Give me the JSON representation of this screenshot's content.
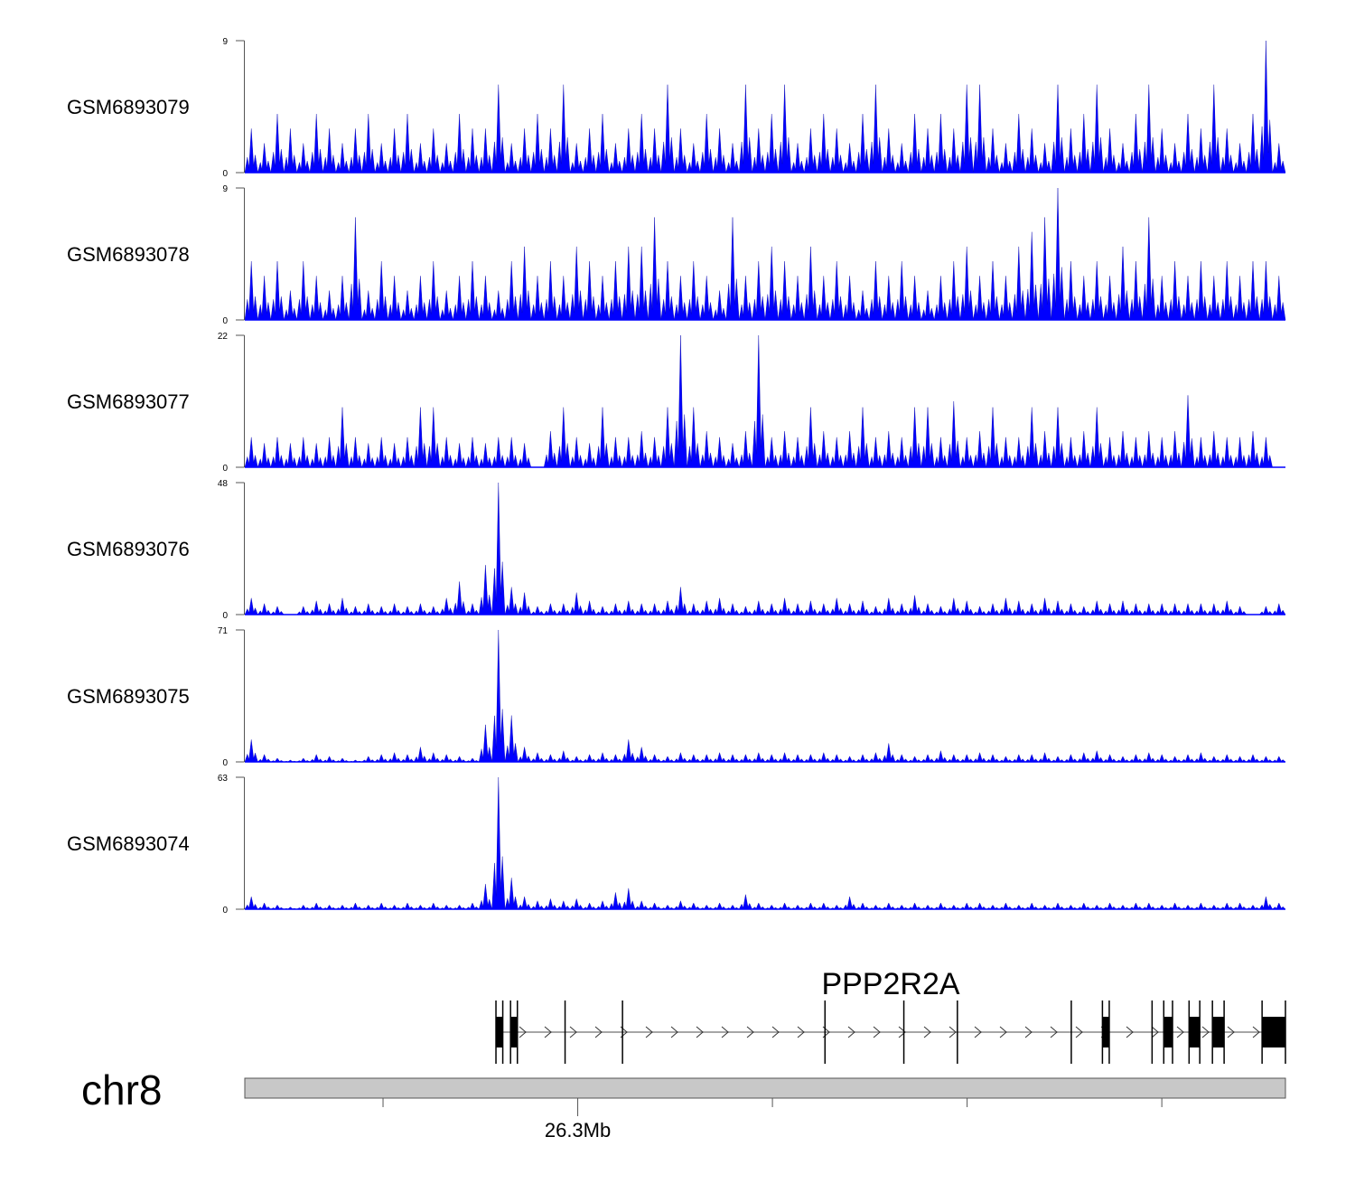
{
  "chart_data": {
    "type": "area",
    "title": "",
    "chromosome": "chr8",
    "xlim_mb": [
      26.2658,
      26.3727
    ],
    "x_ticks_mb": [
      26.28,
      26.3,
      26.32,
      26.34,
      26.36
    ],
    "x_tick_labels": [
      "",
      "26.3Mb",
      "",
      "",
      ""
    ],
    "bins": 80,
    "tracks": [
      {
        "name": "GSM6893079",
        "ylim": [
          0,
          9
        ],
        "y_tick_labels": [
          "9",
          "0"
        ],
        "values": [
          3,
          2,
          4,
          3,
          2,
          4,
          3,
          2,
          3,
          4,
          2,
          3,
          4,
          2,
          3,
          2,
          4,
          3,
          3,
          6,
          2,
          3,
          4,
          3,
          6,
          2,
          3,
          4,
          2,
          3,
          4,
          3,
          6,
          3,
          2,
          4,
          3,
          2,
          6,
          3,
          4,
          6,
          2,
          3,
          4,
          3,
          2,
          4,
          6,
          3,
          2,
          4,
          3,
          4,
          3,
          6,
          6,
          3,
          2,
          4,
          3,
          2,
          6,
          3,
          4,
          6,
          3,
          2,
          4,
          6,
          3,
          2,
          4,
          3,
          6,
          3,
          2,
          4,
          9,
          2
        ]
      },
      {
        "name": "GSM6893078",
        "ylim": [
          0,
          9
        ],
        "y_tick_labels": [
          "9",
          "0"
        ],
        "values": [
          4,
          3,
          4,
          2,
          4,
          3,
          2,
          3,
          7,
          2,
          4,
          3,
          2,
          3,
          4,
          2,
          3,
          4,
          3,
          2,
          4,
          5,
          3,
          4,
          3,
          5,
          4,
          3,
          4,
          5,
          5,
          7,
          4,
          3,
          4,
          3,
          2,
          7,
          3,
          4,
          5,
          4,
          3,
          5,
          3,
          4,
          3,
          2,
          4,
          3,
          4,
          3,
          2,
          3,
          4,
          5,
          3,
          4,
          3,
          5,
          6,
          7,
          9,
          4,
          3,
          4,
          3,
          5,
          4,
          7,
          3,
          4,
          3,
          4,
          3,
          4,
          3,
          4,
          4,
          3
        ]
      },
      {
        "name": "GSM6893077",
        "ylim": [
          0,
          22
        ],
        "y_tick_labels": [
          "22",
          "0"
        ],
        "values": [
          5,
          4,
          5,
          4,
          5,
          4,
          5,
          10,
          5,
          4,
          5,
          4,
          5,
          10,
          10,
          5,
          4,
          5,
          4,
          5,
          5,
          4,
          0,
          6,
          10,
          5,
          4,
          10,
          5,
          5,
          6,
          5,
          10,
          22,
          10,
          6,
          5,
          4,
          6,
          22,
          5,
          6,
          5,
          10,
          6,
          5,
          6,
          10,
          5,
          6,
          5,
          10,
          10,
          5,
          11,
          5,
          6,
          10,
          5,
          5,
          10,
          6,
          10,
          5,
          6,
          10,
          5,
          6,
          5,
          6,
          5,
          6,
          12,
          5,
          6,
          5,
          5,
          6,
          5,
          0
        ]
      },
      {
        "name": "GSM6893076",
        "ylim": [
          0,
          48
        ],
        "y_tick_labels": [
          "48",
          "0"
        ],
        "values": [
          6,
          4,
          3,
          0,
          3,
          5,
          4,
          6,
          3,
          4,
          3,
          4,
          3,
          4,
          3,
          6,
          12,
          4,
          18,
          48,
          10,
          8,
          3,
          4,
          4,
          8,
          5,
          3,
          4,
          5,
          4,
          4,
          5,
          10,
          4,
          5,
          6,
          4,
          3,
          5,
          4,
          6,
          4,
          5,
          4,
          6,
          4,
          5,
          3,
          6,
          4,
          7,
          4,
          3,
          6,
          5,
          3,
          4,
          6,
          5,
          4,
          6,
          5,
          4,
          3,
          5,
          4,
          5,
          4,
          4,
          4,
          4,
          4,
          4,
          4,
          5,
          3,
          0,
          3,
          4
        ]
      },
      {
        "name": "GSM6893075",
        "ylim": [
          0,
          71
        ],
        "y_tick_labels": [
          "71",
          "0"
        ],
        "values": [
          12,
          4,
          2,
          1,
          2,
          4,
          3,
          2,
          1,
          3,
          4,
          5,
          4,
          8,
          5,
          4,
          3,
          2,
          20,
          71,
          25,
          8,
          5,
          4,
          6,
          3,
          4,
          5,
          4,
          12,
          8,
          4,
          3,
          5,
          4,
          4,
          5,
          4,
          4,
          5,
          4,
          5,
          4,
          4,
          5,
          4,
          3,
          4,
          5,
          10,
          4,
          3,
          4,
          6,
          4,
          4,
          5,
          4,
          3,
          4,
          4,
          5,
          3,
          4,
          5,
          6,
          4,
          3,
          4,
          5,
          4,
          3,
          4,
          5,
          3,
          4,
          3,
          4,
          3,
          3
        ]
      },
      {
        "name": "GSM6893074",
        "ylim": [
          0,
          63
        ],
        "y_tick_labels": [
          "63",
          "0"
        ],
        "values": [
          6,
          3,
          2,
          1,
          2,
          3,
          2,
          2,
          3,
          2,
          3,
          2,
          3,
          2,
          3,
          2,
          2,
          3,
          12,
          63,
          15,
          6,
          4,
          5,
          4,
          5,
          3,
          4,
          8,
          10,
          4,
          3,
          2,
          4,
          3,
          2,
          3,
          2,
          7,
          3,
          2,
          3,
          2,
          3,
          3,
          2,
          6,
          3,
          2,
          3,
          2,
          3,
          2,
          3,
          2,
          3,
          3,
          2,
          3,
          2,
          3,
          2,
          3,
          2,
          3,
          2,
          3,
          2,
          3,
          3,
          2,
          3,
          2,
          3,
          2,
          3,
          3,
          2,
          6,
          3
        ]
      }
    ],
    "gene": {
      "name": "PPP2R2A",
      "strand": "+",
      "start_mb": 26.2916,
      "end_mb": 26.3727,
      "exons_mb": [
        [
          26.2916,
          26.2923
        ],
        [
          26.2931,
          26.2938
        ],
        [
          26.2987,
          26.2988
        ],
        [
          26.3046,
          26.3047
        ],
        [
          26.3254,
          26.3255
        ],
        [
          26.3335,
          26.3336
        ],
        [
          26.339,
          26.3391
        ],
        [
          26.3507,
          26.3508
        ],
        [
          26.3539,
          26.3546
        ],
        [
          26.359,
          26.3591
        ],
        [
          26.3602,
          26.3611
        ],
        [
          26.3628,
          26.3639
        ],
        [
          26.3652,
          26.3664
        ],
        [
          26.3703,
          26.3727
        ]
      ]
    },
    "colors": {
      "signal": "#0000ff",
      "gene": "#000000",
      "ideogram": "#c8c8c8"
    }
  }
}
